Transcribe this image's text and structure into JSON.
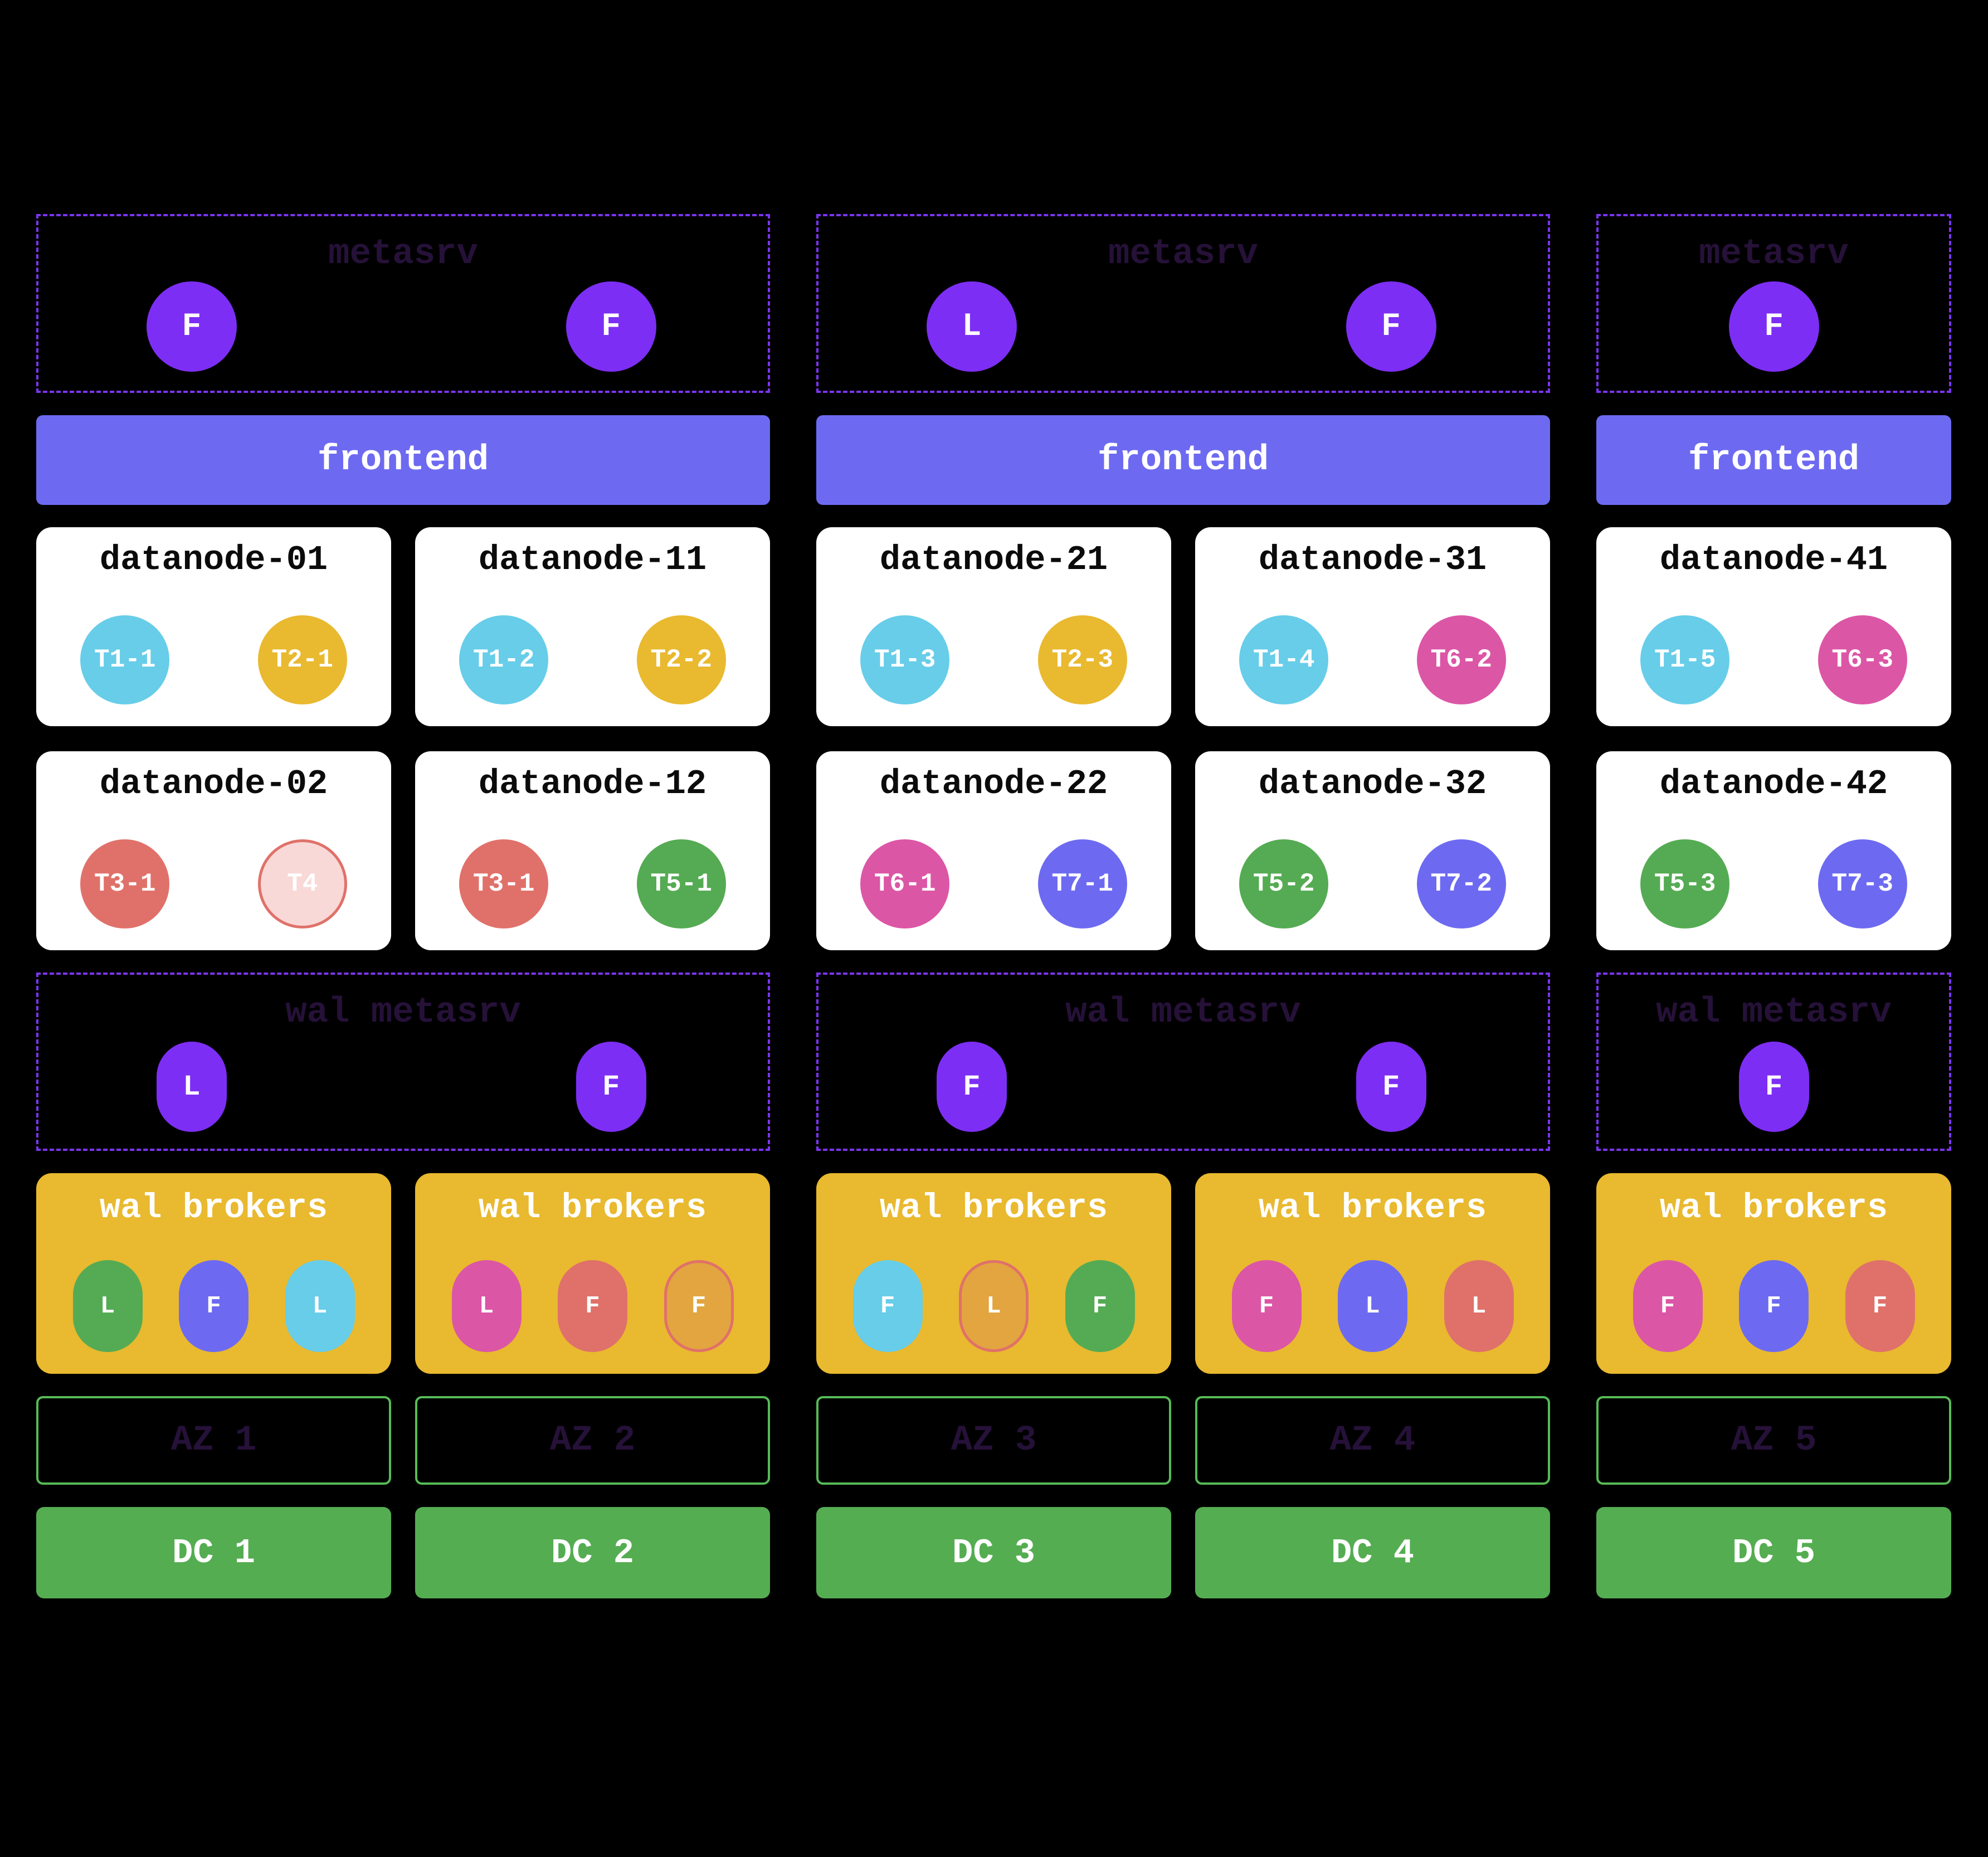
{
  "colors": {
    "background": "#000000",
    "metasrv_node_purple": "#7d2ef5",
    "dashed_border_purple": "#7b35f2",
    "dark_purple_label": "#261139",
    "frontend_bar_blue": "#6d6af1",
    "broker_box_gold": "#e9b92f",
    "region_cyan": "#67cde9",
    "region_gold": "#e9b92f",
    "region_salmon": "#e0716a",
    "region_salmon_light_fill": "#f8d9d7",
    "region_green": "#55ab53",
    "region_pink": "#dc56a6",
    "region_periwinkle": "#6d6af1",
    "broker_amber": "#e2a53f",
    "az_border_green": "#57bb57",
    "dc_bar_green": "#55ad52",
    "card_white": "#ffffff"
  },
  "groups": [
    {
      "metasrv": {
        "title": "metasrv",
        "nodes": [
          "F",
          "F"
        ]
      },
      "frontend": "frontend",
      "datanodes_top": [
        {
          "title": "datanode-01",
          "regions": [
            {
              "label": "T1-1",
              "color": "cyan"
            },
            {
              "label": "T2-1",
              "color": "gold"
            }
          ]
        },
        {
          "title": "datanode-11",
          "regions": [
            {
              "label": "T1-2",
              "color": "cyan"
            },
            {
              "label": "T2-2",
              "color": "gold"
            }
          ]
        }
      ],
      "datanodes_bottom": [
        {
          "title": "datanode-02",
          "regions": [
            {
              "label": "T3-1",
              "color": "salmon"
            },
            {
              "label": "T4",
              "color": "salmon-light"
            }
          ]
        },
        {
          "title": "datanode-12",
          "regions": [
            {
              "label": "T3-1",
              "color": "salmon"
            },
            {
              "label": "T5-1",
              "color": "green"
            }
          ]
        }
      ],
      "wal_metasrv": {
        "title": "wal metasrv",
        "nodes": [
          "L",
          "F"
        ]
      },
      "wal_brokers": [
        {
          "title": "wal brokers",
          "nodes": [
            {
              "letter": "L",
              "color": "green"
            },
            {
              "letter": "F",
              "color": "periwinkle"
            },
            {
              "letter": "L",
              "color": "cyan"
            }
          ]
        },
        {
          "title": "wal brokers",
          "nodes": [
            {
              "letter": "L",
              "color": "pink"
            },
            {
              "letter": "F",
              "color": "salmon"
            },
            {
              "letter": "F",
              "color": "amber",
              "outlined": true
            }
          ]
        }
      ],
      "az": [
        "AZ 1",
        "AZ 2"
      ],
      "dc": [
        "DC 1",
        "DC 2"
      ]
    },
    {
      "metasrv": {
        "title": "metasrv",
        "nodes": [
          "L",
          "F"
        ]
      },
      "frontend": "frontend",
      "datanodes_top": [
        {
          "title": "datanode-21",
          "regions": [
            {
              "label": "T1-3",
              "color": "cyan"
            },
            {
              "label": "T2-3",
              "color": "gold"
            }
          ]
        },
        {
          "title": "datanode-31",
          "regions": [
            {
              "label": "T1-4",
              "color": "cyan"
            },
            {
              "label": "T6-2",
              "color": "pink"
            }
          ]
        }
      ],
      "datanodes_bottom": [
        {
          "title": "datanode-22",
          "regions": [
            {
              "label": "T6-1",
              "color": "pink"
            },
            {
              "label": "T7-1",
              "color": "periwinkle"
            }
          ]
        },
        {
          "title": "datanode-32",
          "regions": [
            {
              "label": "T5-2",
              "color": "green"
            },
            {
              "label": "T7-2",
              "color": "periwinkle"
            }
          ]
        }
      ],
      "wal_metasrv": {
        "title": "wal metasrv",
        "nodes": [
          "F",
          "F"
        ]
      },
      "wal_brokers": [
        {
          "title": "wal brokers",
          "nodes": [
            {
              "letter": "F",
              "color": "cyan"
            },
            {
              "letter": "L",
              "color": "amber",
              "outlined": true
            },
            {
              "letter": "F",
              "color": "green"
            }
          ]
        },
        {
          "title": "wal brokers",
          "nodes": [
            {
              "letter": "F",
              "color": "pink"
            },
            {
              "letter": "L",
              "color": "periwinkle"
            },
            {
              "letter": "L",
              "color": "salmon"
            }
          ]
        }
      ],
      "az": [
        "AZ 3",
        "AZ 4"
      ],
      "dc": [
        "DC 3",
        "DC 4"
      ]
    },
    {
      "metasrv": {
        "title": "metasrv",
        "nodes": [
          "F"
        ]
      },
      "frontend": "frontend",
      "datanodes_top": [
        {
          "title": "datanode-41",
          "regions": [
            {
              "label": "T1-5",
              "color": "cyan"
            },
            {
              "label": "T6-3",
              "color": "pink"
            }
          ]
        }
      ],
      "datanodes_bottom": [
        {
          "title": "datanode-42",
          "regions": [
            {
              "label": "T5-3",
              "color": "green"
            },
            {
              "label": "T7-3",
              "color": "periwinkle"
            }
          ]
        }
      ],
      "wal_metasrv": {
        "title": "wal metasrv",
        "nodes": [
          "F"
        ]
      },
      "wal_brokers": [
        {
          "title": "wal brokers",
          "nodes": [
            {
              "letter": "F",
              "color": "pink"
            },
            {
              "letter": "F",
              "color": "periwinkle"
            },
            {
              "letter": "F",
              "color": "salmon"
            }
          ]
        }
      ],
      "az": [
        "AZ 5"
      ],
      "dc": [
        "DC 5"
      ]
    }
  ]
}
